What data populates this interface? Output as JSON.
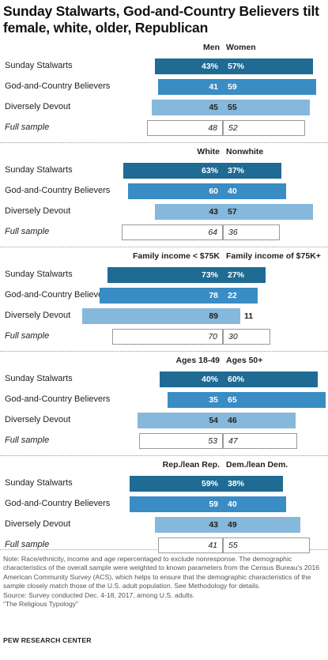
{
  "title": "Sunday Stalwarts, God-and-Country  Believers tilt female, white, older, Republican",
  "colors": {
    "dark": "#1f6b94",
    "mid": "#3a8cc5",
    "light": "#86b8db",
    "text_on_dark": "#ffffff",
    "text_on_light": "#222222"
  },
  "chart_data": [
    {
      "type": "bar",
      "left_header": "Men",
      "right_header": "Women",
      "categories": [
        "Sunday Stalwarts",
        "God-and-Country Believers",
        "Diversely Devout",
        "Full sample"
      ],
      "left_labels": [
        "43%",
        "41",
        "45",
        "48"
      ],
      "right_labels": [
        "57%",
        "59",
        "55",
        "52"
      ],
      "series": [
        {
          "name": "Men",
          "values": [
            43,
            41,
            45,
            48
          ]
        },
        {
          "name": "Women",
          "values": [
            57,
            59,
            55,
            52
          ]
        }
      ]
    },
    {
      "type": "bar",
      "left_header": "White",
      "right_header": "Nonwhite",
      "categories": [
        "Sunday Stalwarts",
        "God-and-Country Believers",
        "Diversely Devout",
        "Full sample"
      ],
      "left_labels": [
        "63%",
        "60",
        "43",
        "64"
      ],
      "right_labels": [
        "37%",
        "40",
        "57",
        "36"
      ],
      "series": [
        {
          "name": "White",
          "values": [
            63,
            60,
            43,
            64
          ]
        },
        {
          "name": "Nonwhite",
          "values": [
            37,
            40,
            57,
            36
          ]
        }
      ]
    },
    {
      "type": "bar",
      "left_header": "Family income < $75K",
      "right_header": "Family income of $75K+",
      "categories": [
        "Sunday Stalwarts",
        "God-and-Country Believers",
        "Diversely Devout",
        "Full sample"
      ],
      "left_labels": [
        "73%",
        "78",
        "89",
        "70"
      ],
      "right_labels": [
        "27%",
        "22",
        "11",
        "30"
      ],
      "series": [
        {
          "name": "Family income < $75K",
          "values": [
            73,
            78,
            89,
            70
          ]
        },
        {
          "name": "Family income of $75K+",
          "values": [
            27,
            22,
            11,
            30
          ]
        }
      ]
    },
    {
      "type": "bar",
      "left_header": "Ages 18-49",
      "right_header": "Ages 50+",
      "categories": [
        "Sunday Stalwarts",
        "God-and-Country Believers",
        "Diversely Devout",
        "Full sample"
      ],
      "left_labels": [
        "40%",
        "35",
        "54",
        "53"
      ],
      "right_labels": [
        "60%",
        "65",
        "46",
        "47"
      ],
      "series": [
        {
          "name": "Ages 18-49",
          "values": [
            40,
            35,
            54,
            53
          ]
        },
        {
          "name": "Ages 50+",
          "values": [
            60,
            65,
            46,
            47
          ]
        }
      ]
    },
    {
      "type": "bar",
      "left_header": "Rep./lean Rep.",
      "right_header": "Dem./lean Dem.",
      "categories": [
        "Sunday Stalwarts",
        "God-and-Country Believers",
        "Diversely Devout",
        "Full sample"
      ],
      "left_labels": [
        "59%",
        "59",
        "43",
        "41"
      ],
      "right_labels": [
        "38%",
        "40",
        "49",
        "55"
      ],
      "series": [
        {
          "name": "Rep./lean Rep.",
          "values": [
            59,
            59,
            43,
            41
          ]
        },
        {
          "name": "Dem./lean Dem.",
          "values": [
            38,
            40,
            49,
            55
          ]
        }
      ]
    }
  ],
  "notes": [
    "Note: Race/ethnicity, income and age repercentaged to exclude nonresponse. The demographic characteristics of the overall sample were weighted to known parameters from the Census Bureau's 2016 American Community Survey (ACS), which helps to ensure that the demographic characteristics of the sample closely match those of the U.S. adult population. See Methodology for details.",
    "Source: Survey conducted Dec. 4-18, 2017, among U.S. adults.",
    "“The Religious Typology”"
  ],
  "source_brand": "PEW RESEARCH CENTER"
}
